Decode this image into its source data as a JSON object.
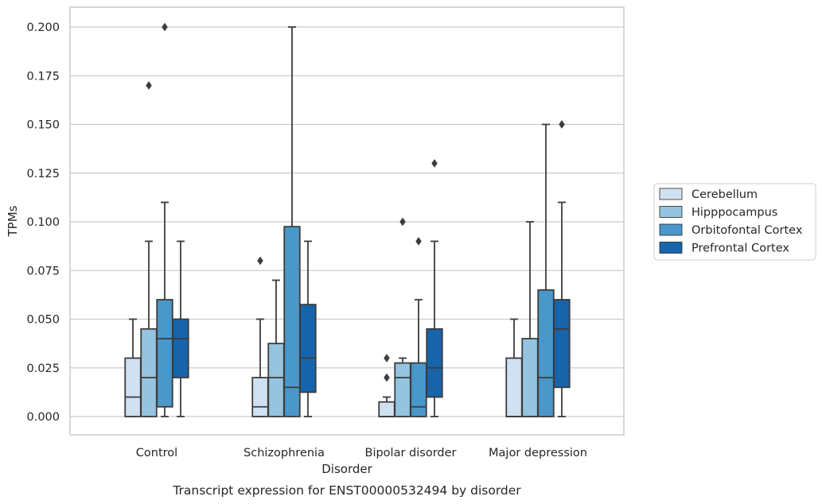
{
  "chart_data": {
    "type": "box",
    "caption": "Transcript expression for ENST00000532494 by disorder",
    "xlabel": "Disorder",
    "ylabel": "TPMs",
    "ylim": [
      -0.01,
      0.21
    ],
    "yticks": [
      "0.000",
      "0.025",
      "0.050",
      "0.075",
      "0.100",
      "0.125",
      "0.150",
      "0.175",
      "0.200"
    ],
    "ytick_values": [
      0,
      0.025,
      0.05,
      0.075,
      0.1,
      0.125,
      0.15,
      0.175,
      0.2
    ],
    "grid": "horizontal",
    "legend_position": "right",
    "categories": [
      "Control",
      "Schizophrenia",
      "Bipolar disorder",
      "Major depression"
    ],
    "series": [
      {
        "name": "Cerebellum",
        "color": "#d0e1f2",
        "boxes": [
          {
            "whisker_low": 0,
            "q1": 0,
            "median": 0.01,
            "q3": 0.03,
            "whisker_high": 0.05,
            "outliers": []
          },
          {
            "whisker_low": 0,
            "q1": 0,
            "median": 0.005,
            "q3": 0.02,
            "whisker_high": 0.05,
            "outliers": [
              0.08
            ]
          },
          {
            "whisker_low": 0,
            "q1": 0,
            "median": 0,
            "q3": 0.0075,
            "whisker_high": 0.01,
            "outliers": [
              0.02,
              0.03
            ]
          },
          {
            "whisker_low": 0,
            "q1": 0,
            "median": 0,
            "q3": 0.03,
            "whisker_high": 0.05,
            "outliers": []
          }
        ]
      },
      {
        "name": "Hipppocampus",
        "color": "#94c4df",
        "boxes": [
          {
            "whisker_low": 0,
            "q1": 0,
            "median": 0.02,
            "q3": 0.045,
            "whisker_high": 0.09,
            "outliers": [
              0.17
            ]
          },
          {
            "whisker_low": 0,
            "q1": 0,
            "median": 0.02,
            "q3": 0.0375,
            "whisker_high": 0.07,
            "outliers": []
          },
          {
            "whisker_low": 0,
            "q1": 0,
            "median": 0.02,
            "q3": 0.0275,
            "whisker_high": 0.03,
            "outliers": [
              0.1
            ]
          },
          {
            "whisker_low": 0,
            "q1": 0,
            "median": 0,
            "q3": 0.04,
            "whisker_high": 0.1,
            "outliers": []
          }
        ]
      },
      {
        "name": "Orbitofontal Cortex",
        "color": "#4a98c9",
        "boxes": [
          {
            "whisker_low": 0,
            "q1": 0.005,
            "median": 0.04,
            "q3": 0.06,
            "whisker_high": 0.11,
            "outliers": [
              0.2
            ]
          },
          {
            "whisker_low": 0,
            "q1": 0,
            "median": 0.015,
            "q3": 0.0975,
            "whisker_high": 0.2,
            "outliers": []
          },
          {
            "whisker_low": 0,
            "q1": 0,
            "median": 0.005,
            "q3": 0.0275,
            "whisker_high": 0.06,
            "outliers": [
              0.09
            ]
          },
          {
            "whisker_low": 0,
            "q1": 0,
            "median": 0.02,
            "q3": 0.065,
            "whisker_high": 0.15,
            "outliers": []
          }
        ]
      },
      {
        "name": "Prefrontal Cortex",
        "color": "#1764ab",
        "boxes": [
          {
            "whisker_low": 0,
            "q1": 0.02,
            "median": 0.04,
            "q3": 0.05,
            "whisker_high": 0.09,
            "outliers": []
          },
          {
            "whisker_low": 0,
            "q1": 0.0125,
            "median": 0.03,
            "q3": 0.0575,
            "whisker_high": 0.09,
            "outliers": []
          },
          {
            "whisker_low": 0,
            "q1": 0.01,
            "median": 0.025,
            "q3": 0.045,
            "whisker_high": 0.09,
            "outliers": [
              0.13
            ]
          },
          {
            "whisker_low": 0,
            "q1": 0.015,
            "median": 0.045,
            "q3": 0.06,
            "whisker_high": 0.11,
            "outliers": [
              0.15
            ]
          }
        ]
      }
    ]
  }
}
